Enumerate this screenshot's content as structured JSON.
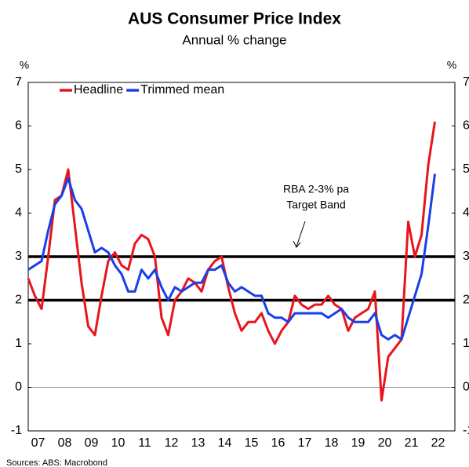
{
  "chart_data": {
    "type": "line",
    "title": "AUS Consumer Price Index",
    "subtitle": "Annual % change",
    "ylabel": "%",
    "y2label": "%",
    "source": "Sources: ABS: Macrobond",
    "annotation": [
      "RBA 2-3% pa",
      "Target Band"
    ],
    "target_band": [
      2,
      3
    ],
    "categories": [
      null,
      "07",
      null,
      null,
      null,
      "08",
      null,
      null,
      null,
      "09",
      null,
      null,
      null,
      "10",
      null,
      null,
      null,
      "11",
      null,
      null,
      null,
      "12",
      null,
      null,
      null,
      "13",
      null,
      null,
      null,
      "14",
      null,
      null,
      null,
      "15",
      null,
      null,
      null,
      "16",
      null,
      null,
      null,
      "17",
      null,
      null,
      null,
      "18",
      null,
      null,
      null,
      "19",
      null,
      null,
      null,
      "20",
      null,
      null,
      null,
      "21",
      null,
      null,
      null,
      "22"
    ],
    "series": [
      {
        "name": "Headline",
        "color": "#e8141c",
        "values": [
          2.5,
          2.1,
          1.8,
          3.0,
          4.3,
          4.4,
          5.0,
          3.7,
          2.4,
          1.4,
          1.2,
          2.1,
          2.9,
          3.1,
          2.8,
          2.7,
          3.3,
          3.5,
          3.4,
          3.0,
          1.6,
          1.2,
          2.0,
          2.2,
          2.5,
          2.4,
          2.2,
          2.7,
          2.9,
          3.0,
          2.3,
          1.7,
          1.3,
          1.5,
          1.5,
          1.7,
          1.3,
          1.0,
          1.3,
          1.5,
          2.1,
          1.9,
          1.8,
          1.9,
          1.9,
          2.1,
          1.9,
          1.8,
          1.3,
          1.6,
          1.7,
          1.8,
          2.2,
          -0.3,
          0.7,
          0.9,
          1.1,
          3.8,
          3.0,
          3.5,
          5.1,
          6.1
        ]
      },
      {
        "name": "Trimmed mean",
        "color": "#1a3ee8",
        "values": [
          2.7,
          2.8,
          2.9,
          3.6,
          4.2,
          4.4,
          4.8,
          4.3,
          4.1,
          3.6,
          3.1,
          3.2,
          3.1,
          2.8,
          2.6,
          2.2,
          2.2,
          2.7,
          2.5,
          2.7,
          2.3,
          2.0,
          2.3,
          2.2,
          2.3,
          2.4,
          2.4,
          2.7,
          2.7,
          2.8,
          2.4,
          2.2,
          2.3,
          2.2,
          2.1,
          2.1,
          1.7,
          1.6,
          1.6,
          1.5,
          1.7,
          1.7,
          1.7,
          1.7,
          1.7,
          1.6,
          1.7,
          1.8,
          1.6,
          1.5,
          1.5,
          1.5,
          1.7,
          1.2,
          1.1,
          1.2,
          1.1,
          1.6,
          2.1,
          2.6,
          3.7,
          4.9
        ]
      }
    ],
    "ylim": [
      -1,
      7
    ],
    "yticks": [
      -1,
      0,
      1,
      2,
      3,
      4,
      5,
      6,
      7
    ],
    "y2lim": [
      -1,
      7
    ],
    "y2ticks": [
      -1,
      0,
      1,
      2,
      3,
      4,
      5,
      6,
      7
    ],
    "legend": "top-left"
  }
}
